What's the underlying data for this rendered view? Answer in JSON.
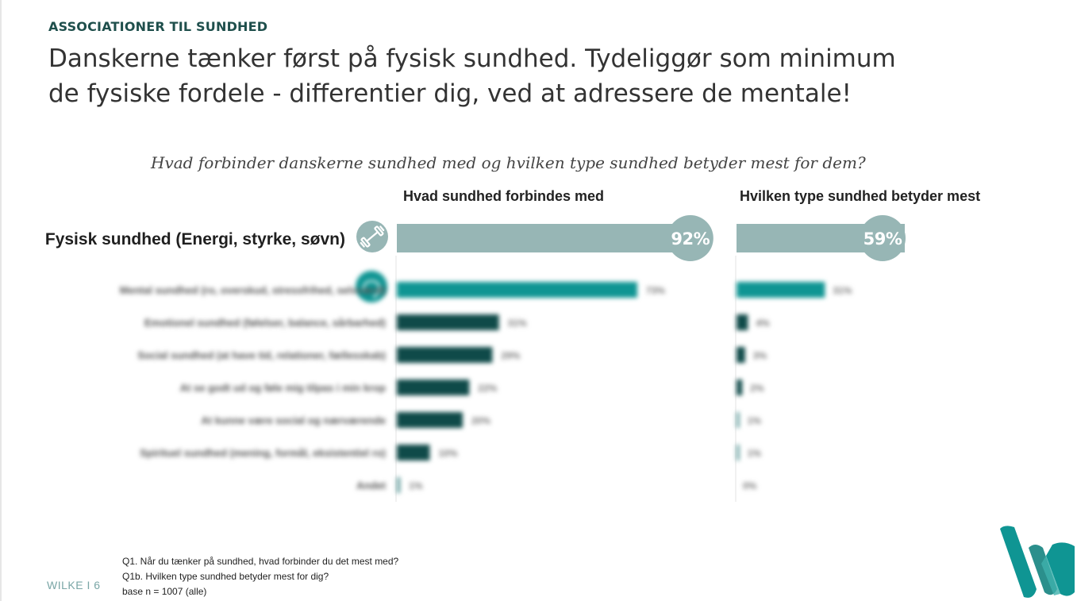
{
  "header": {
    "eyebrow": "ASSOCIATIONER TIL SUNDHED",
    "headline": "Danskerne tænker først på fysisk sundhed. Tydeliggør som minimum de fysiske fordele - differentier dig, ved at adressere de mentale!"
  },
  "chart_data": {
    "type": "bar",
    "title": "Hvad forbinder danskerne sundhed med og hvilken type sundhed betyder mest for dem?",
    "orientation": "horizontal",
    "categories": [
      "Fysisk sundhed (Energi, styrke, søvn)",
      "Mental sundhed (ro, overskud, stressfrihed, selvværd)",
      "Emotionel sundhed (følelser, balance, sårbarhed)",
      "Social sundhed (at have tid, relationer, fællesskab)",
      "At se godt ud og føle mig tilpas i min krop",
      "At kunne være social og nærværende",
      "Spirituel sundhed (mening, formål, eksistentiel ro)",
      "Andet"
    ],
    "series": [
      {
        "name": "Hvad sundhed forbindes med",
        "values": [
          92,
          73,
          31,
          29,
          22,
          20,
          10,
          1
        ],
        "labels": [
          "92%",
          "73%",
          "31%",
          "29%",
          "22%",
          "20%",
          "10%",
          "1%"
        ]
      },
      {
        "name": "Hvilken type sundhed betyder mest",
        "values": [
          59,
          31,
          4,
          3,
          2,
          1,
          1,
          0
        ],
        "labels": [
          "59%",
          "31%",
          "4%",
          "3%",
          "2%",
          "1%",
          "1%",
          "0%"
        ]
      }
    ],
    "xlim": [
      0,
      100
    ],
    "colors": {
      "top_bar": "#97b6b5",
      "top_bubble": "#97b6b5",
      "second_bar": "#0f9593",
      "other_bars": "#0f4a49",
      "small_bars": "#5e9a99",
      "icon_bg": "#0f9593"
    }
  },
  "footnote": {
    "line1": "Q1. Når du tænker på sundhed, hvad forbinder du det mest med?",
    "line2": "Q1b. Hvilken type sundhed betyder mest for dig?",
    "line3": "base n = 1007 (alle)"
  },
  "page": {
    "marker": "WILKE I 6"
  },
  "icons": {
    "fysisk": "dumbbell-icon",
    "mental": "brain-icon",
    "logo": "wilke-logo"
  }
}
